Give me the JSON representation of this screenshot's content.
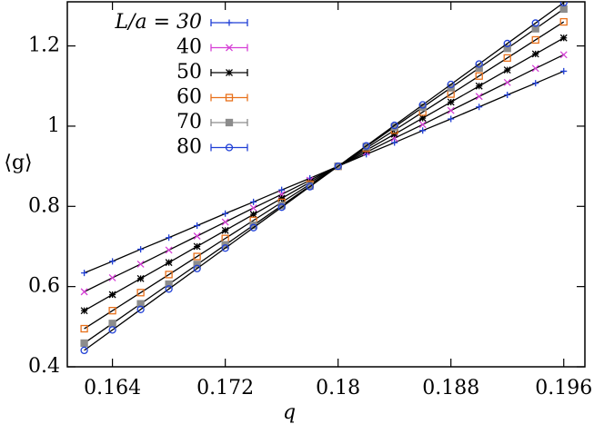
{
  "chart_data": {
    "type": "line",
    "xlabel": "q",
    "ylabel": "⟨g⟩",
    "xlim": [
      0.1608,
      0.1975
    ],
    "ylim": [
      0.4,
      1.31
    ],
    "xticks": [
      0.164,
      0.172,
      0.18,
      0.188,
      0.196
    ],
    "yticks": [
      0.4,
      0.6,
      0.8,
      1,
      1.2
    ],
    "legend": "top-left",
    "x": [
      0.162,
      0.164,
      0.166,
      0.168,
      0.17,
      0.172,
      0.174,
      0.176,
      0.178,
      0.18,
      0.182,
      0.184,
      0.186,
      0.188,
      0.19,
      0.192,
      0.194,
      0.196
    ],
    "series": [
      {
        "name": "L/a = 30",
        "color": "#1f3fd6",
        "marker": "plus",
        "values": [
          0.634,
          0.663,
          0.693,
          0.722,
          0.752,
          0.782,
          0.811,
          0.841,
          0.87,
          0.9,
          0.93,
          0.959,
          0.989,
          1.018,
          1.048,
          1.078,
          1.107,
          1.137
        ]
      },
      {
        "name": "40",
        "color": "#d63fd6",
        "marker": "cross",
        "values": [
          0.587,
          0.622,
          0.656,
          0.691,
          0.726,
          0.761,
          0.796,
          0.83,
          0.865,
          0.9,
          0.935,
          0.97,
          1.004,
          1.039,
          1.074,
          1.109,
          1.144,
          1.178
        ]
      },
      {
        "name": "50",
        "color": "#000000",
        "marker": "star",
        "values": [
          0.54,
          0.58,
          0.62,
          0.66,
          0.7,
          0.74,
          0.78,
          0.82,
          0.86,
          0.9,
          0.94,
          0.98,
          1.02,
          1.06,
          1.1,
          1.14,
          1.18,
          1.22
        ]
      },
      {
        "name": "60",
        "color": "#e8701a",
        "marker": "square",
        "values": [
          0.495,
          0.54,
          0.585,
          0.63,
          0.675,
          0.72,
          0.765,
          0.81,
          0.855,
          0.9,
          0.945,
          0.99,
          1.035,
          1.08,
          1.125,
          1.17,
          1.215,
          1.26
        ]
      },
      {
        "name": "70",
        "color": "#8c8c8c",
        "marker": "filled-square",
        "values": [
          0.459,
          0.508,
          0.557,
          0.606,
          0.655,
          0.704,
          0.753,
          0.802,
          0.851,
          0.9,
          0.949,
          0.998,
          1.047,
          1.096,
          1.145,
          1.194,
          1.243,
          1.292
        ]
      },
      {
        "name": "80",
        "color": "#1f3fd6",
        "marker": "circle",
        "values": [
          0.441,
          0.492,
          0.543,
          0.594,
          0.645,
          0.696,
          0.747,
          0.798,
          0.849,
          0.9,
          0.951,
          1.002,
          1.053,
          1.104,
          1.155,
          1.206,
          1.257,
          1.308
        ]
      }
    ]
  }
}
